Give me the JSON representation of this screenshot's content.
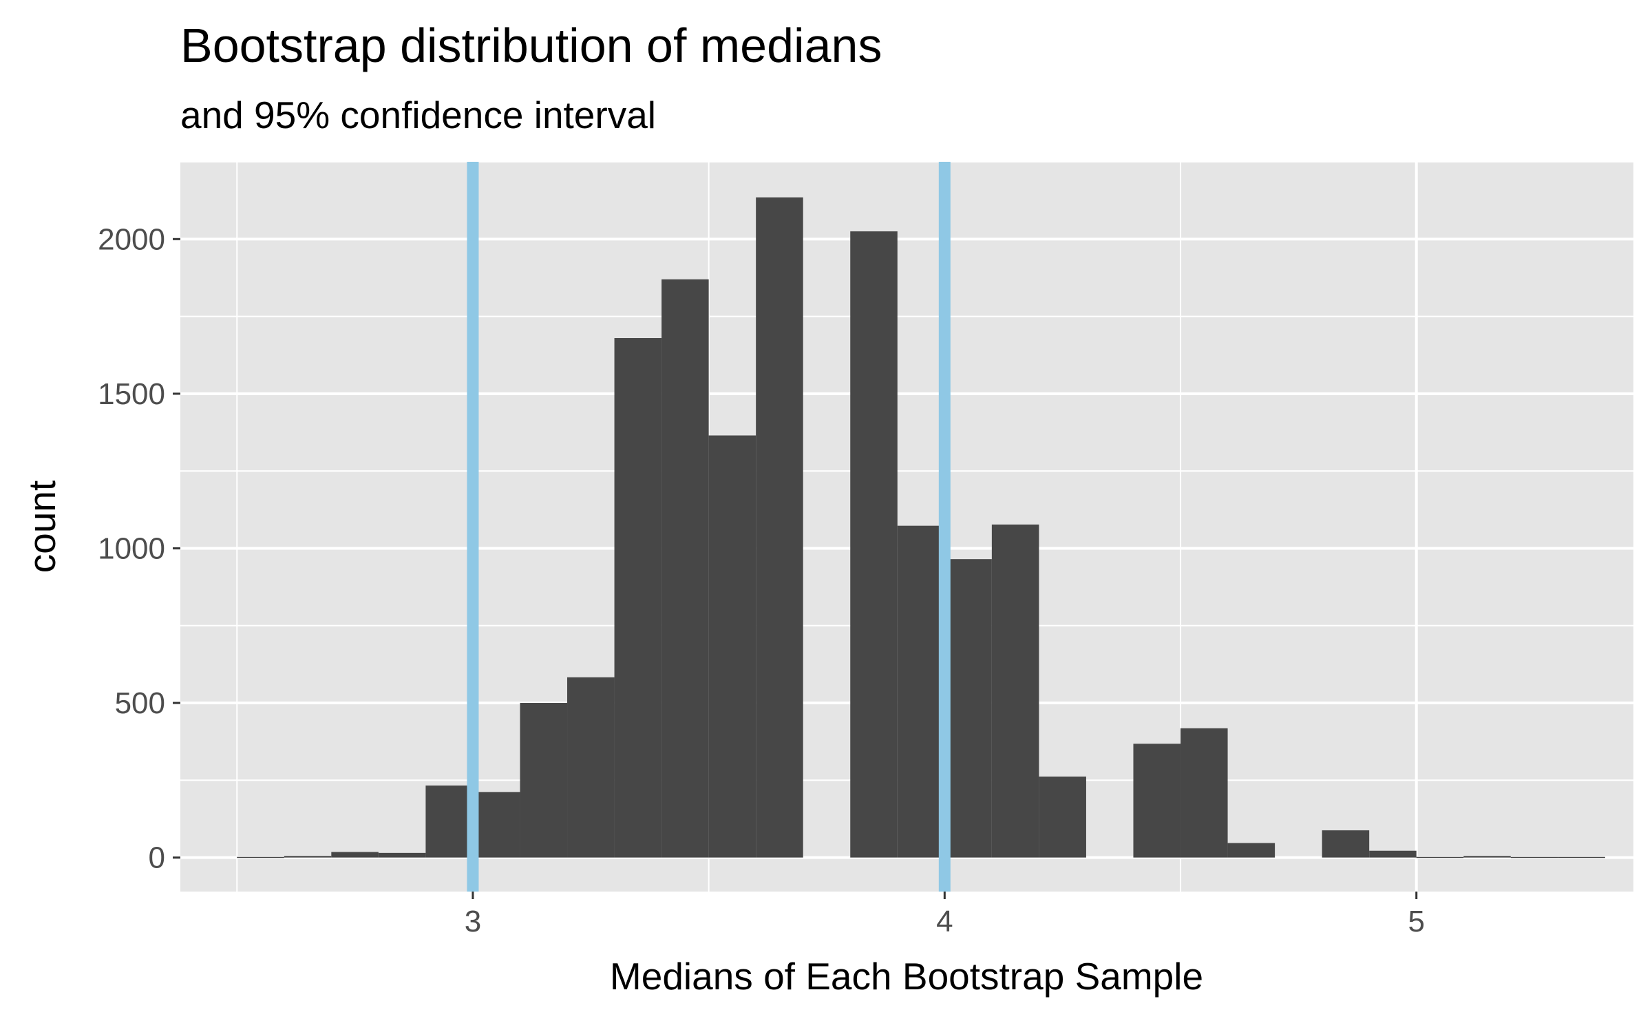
{
  "chart_data": {
    "type": "histogram",
    "title": "Bootstrap distribution of medians",
    "subtitle": "and 95% confidence interval",
    "xlabel": "Medians of Each Bootstrap Sample",
    "ylabel": "count",
    "xlim": [
      2.38,
      5.46
    ],
    "ylim": [
      -110,
      2250
    ],
    "x_ticks": [
      3,
      4,
      5
    ],
    "y_ticks": [
      0,
      500,
      1000,
      1500,
      2000
    ],
    "grid": true,
    "bin_width": 0.1,
    "bin_centers": [
      2.55,
      2.65,
      2.75,
      2.85,
      2.95,
      3.05,
      3.15,
      3.25,
      3.35,
      3.45,
      3.55,
      3.65,
      3.75,
      3.85,
      3.95,
      4.05,
      4.15,
      4.25,
      4.35,
      4.45,
      4.55,
      4.65,
      4.75,
      4.85,
      4.95,
      5.05,
      5.15,
      5.25,
      5.35
    ],
    "counts": [
      2,
      5,
      18,
      15,
      233,
      212,
      500,
      583,
      1680,
      1870,
      1365,
      2135,
      0,
      2025,
      1073,
      965,
      1077,
      262,
      0,
      368,
      418,
      47,
      0,
      88,
      22,
      2,
      5,
      2,
      2
    ],
    "fill_color": "#474747",
    "ci_lines": [
      3.0,
      4.0
    ],
    "ci_color": "#8fc8e5"
  }
}
